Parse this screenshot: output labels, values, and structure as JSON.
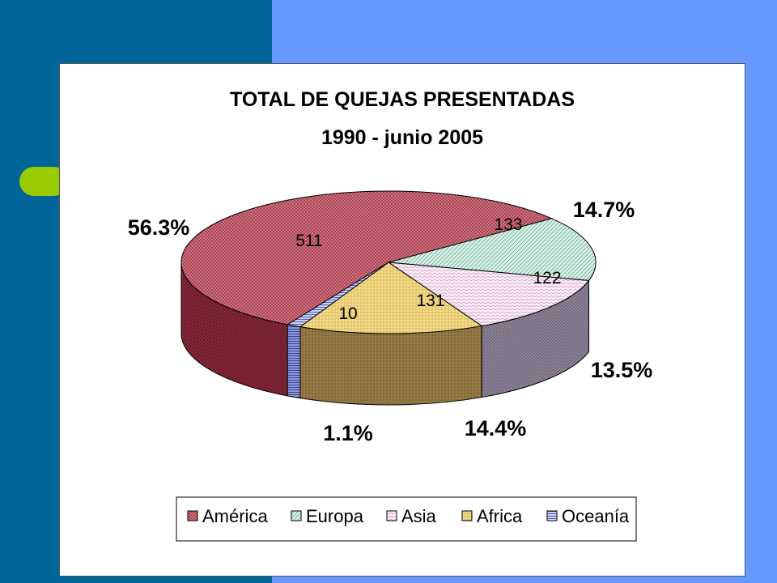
{
  "chart_data": {
    "type": "pie",
    "title": "TOTAL DE QUEJAS PRESENTADAS",
    "subtitle": "1990 - junio 2005",
    "slices": [
      {
        "label": "América",
        "value": 511,
        "percent_label": "56.3%",
        "color": "#cc6677"
      },
      {
        "label": "Europa",
        "value": 133,
        "percent_label": "14.7%",
        "color": "#cfeee2"
      },
      {
        "label": "Asia",
        "value": 122,
        "percent_label": "13.5%",
        "color": "#f8e4f2"
      },
      {
        "label": "Africa",
        "value": 131,
        "percent_label": "14.4%",
        "color": "#f3dc8a"
      },
      {
        "label": "Oceanía",
        "value": 10,
        "percent_label": "1.1%",
        "color": "#9aa4e4"
      }
    ],
    "legend_position": "bottom"
  },
  "colors": {
    "background_right": "#6699ff",
    "background_left": "#006699",
    "accent": "#99cc00"
  }
}
